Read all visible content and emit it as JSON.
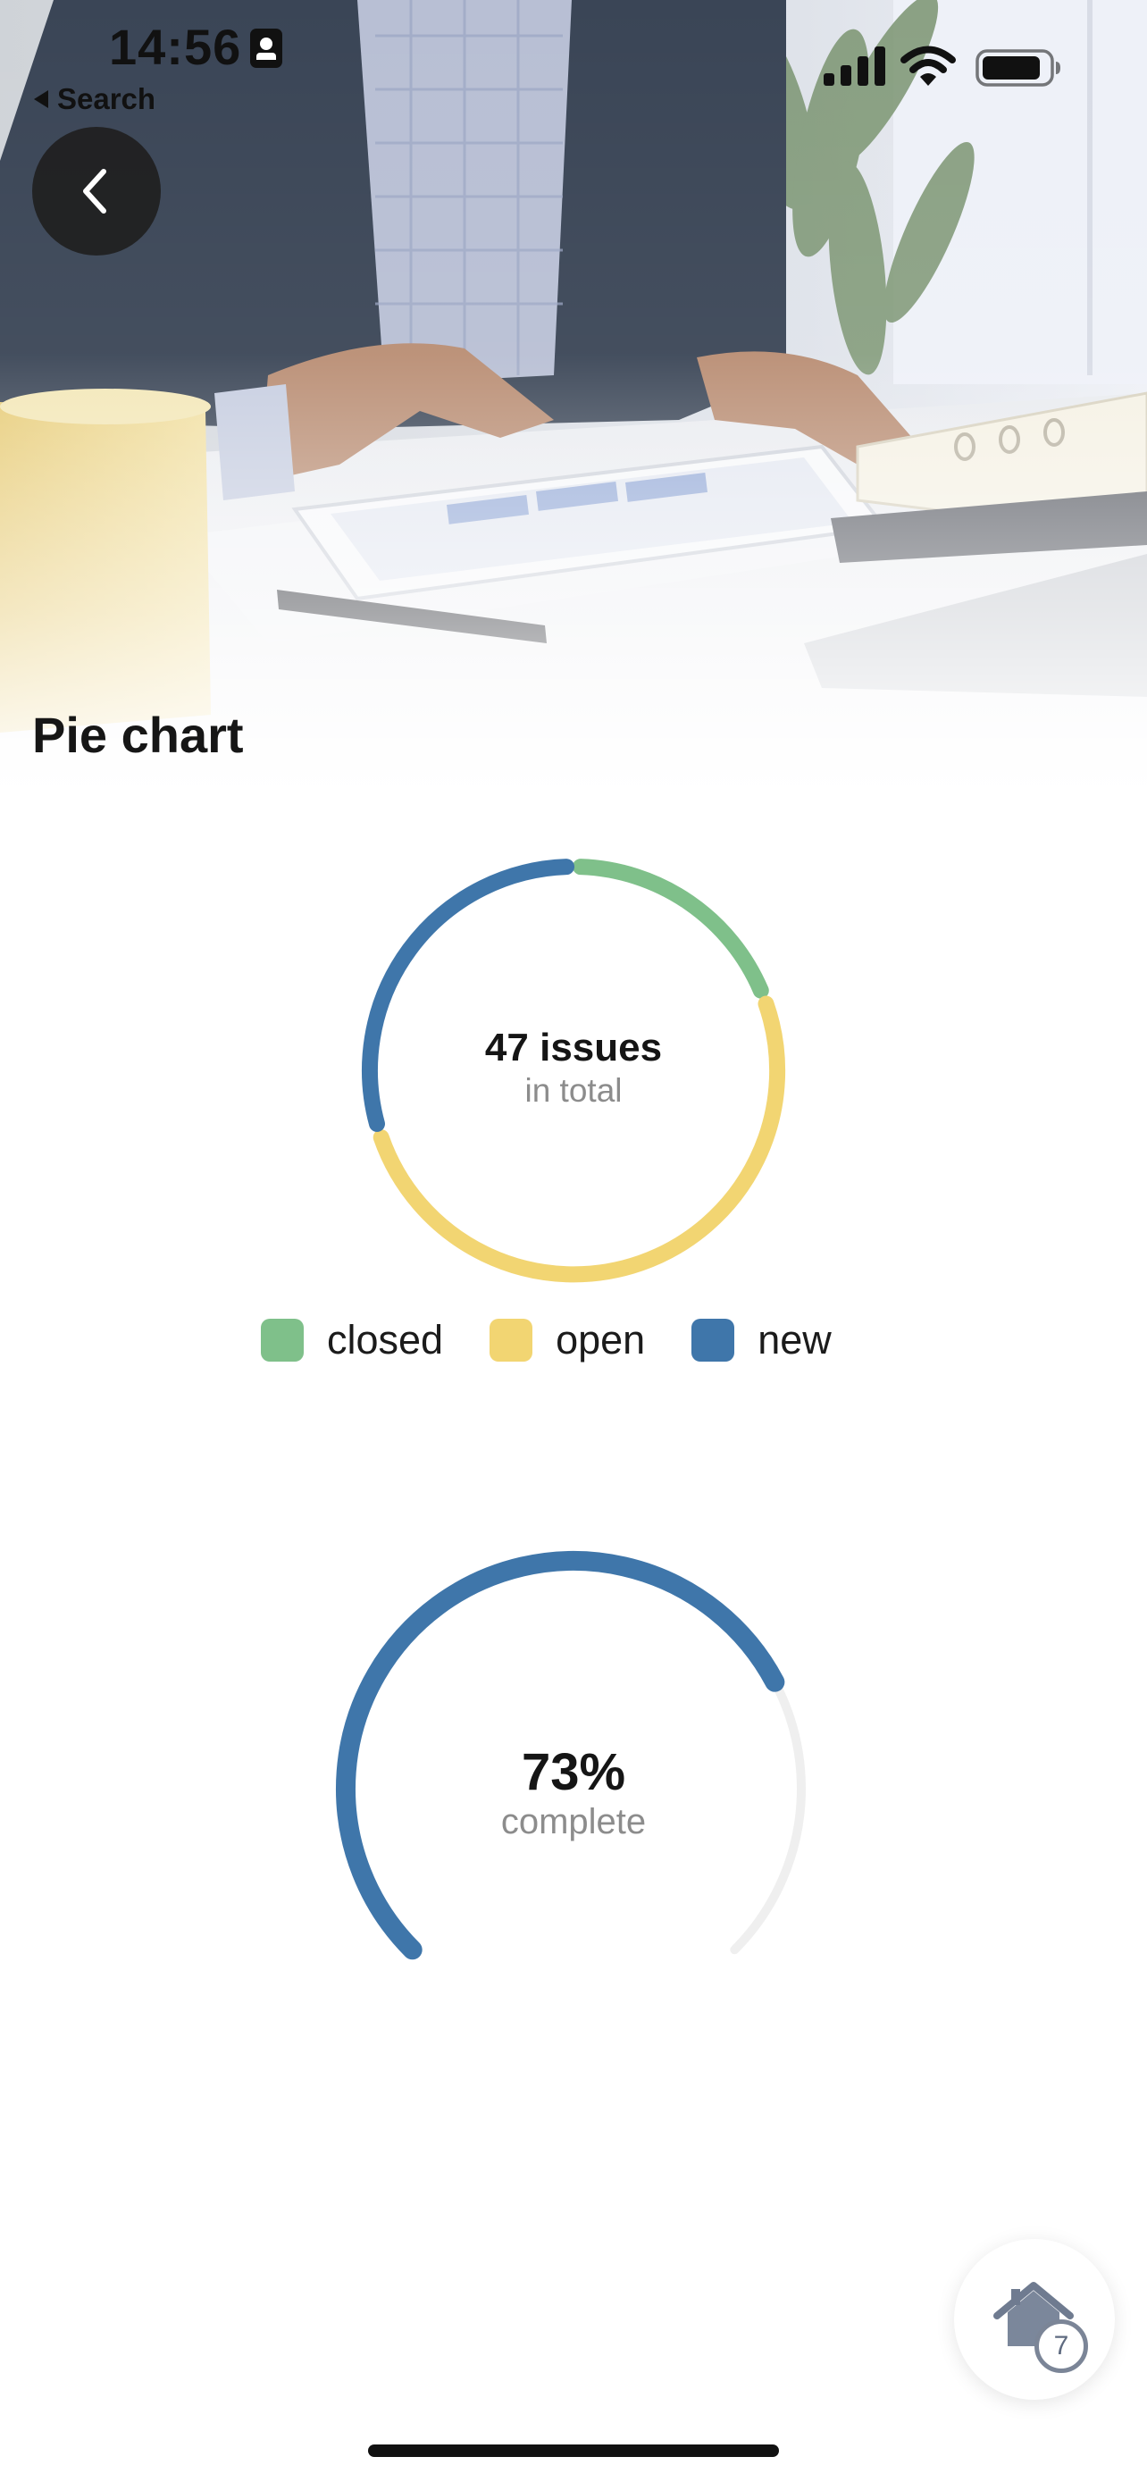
{
  "status_bar": {
    "time": "14:56",
    "back_app_label": "Search"
  },
  "header": {
    "title": "Pie chart",
    "back_icon": "chevron-left-icon",
    "hero_image": "office-desk-tablet-photo"
  },
  "donut_chart": {
    "center_value": "47 issues",
    "center_caption": "in total"
  },
  "legend": [
    {
      "label": "closed",
      "color": "#7fc08a"
    },
    {
      "label": "open",
      "color": "#f2d572"
    },
    {
      "label": "new",
      "color": "#3f76aa"
    }
  ],
  "gauge": {
    "center_value": "73%",
    "center_caption": "complete"
  },
  "home_fab": {
    "icon": "home-icon",
    "count": "7"
  },
  "chart_data": [
    {
      "type": "pie",
      "categories": [
        "closed",
        "open",
        "new"
      ],
      "values": [
        9,
        24,
        14
      ],
      "total": 47,
      "colors": [
        "#7fc08a",
        "#f2d572",
        "#3f76aa"
      ],
      "title": "",
      "legend": "bottom"
    },
    {
      "type": "pie",
      "categories": [
        "complete",
        "remaining"
      ],
      "values": [
        73,
        27
      ],
      "colors": [
        "#3f76aa",
        "#efefef"
      ],
      "title": ""
    }
  ]
}
